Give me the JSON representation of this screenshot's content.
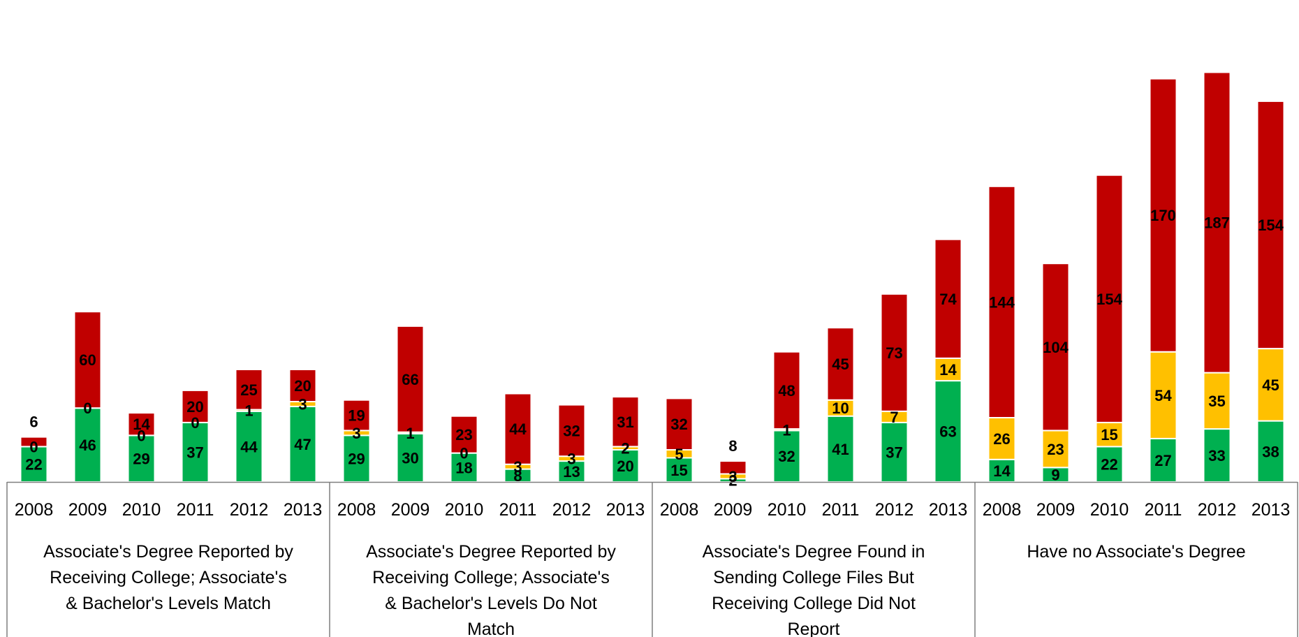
{
  "chart_data": {
    "type": "bar",
    "stacked": true,
    "colors": [
      "#00b050",
      "#ffc000",
      "#c00000"
    ],
    "x_ticks": [
      "2008",
      "2009",
      "2010",
      "2011",
      "2012",
      "2013"
    ],
    "groups": [
      {
        "label_lines": [
          "Associate's Degree Reported by",
          "Receiving College; Associate's",
          "& Bachelor's Levels Match"
        ],
        "bars": [
          [
            22,
            0,
            6
          ],
          [
            46,
            0,
            60
          ],
          [
            29,
            0,
            14
          ],
          [
            37,
            0,
            20
          ],
          [
            44,
            1,
            25
          ],
          [
            47,
            3,
            20
          ]
        ]
      },
      {
        "label_lines": [
          "Associate's Degree Reported by",
          "Receiving College; Associate's",
          "& Bachelor's Levels Do Not",
          "Match"
        ],
        "bars": [
          [
            29,
            3,
            19
          ],
          [
            30,
            1,
            66
          ],
          [
            18,
            0,
            23
          ],
          [
            8,
            3,
            44
          ],
          [
            13,
            3,
            32
          ],
          [
            20,
            2,
            31
          ]
        ]
      },
      {
        "label_lines": [
          "Associate's Degree Found in",
          "Sending College Files But",
          "Receiving College Did Not",
          "Report"
        ],
        "bars": [
          [
            15,
            5,
            32
          ],
          [
            2,
            3,
            8
          ],
          [
            32,
            1,
            48
          ],
          [
            41,
            10,
            45
          ],
          [
            37,
            7,
            73
          ],
          [
            63,
            14,
            74
          ]
        ]
      },
      {
        "label_lines": [
          "Have no Associate's Degree"
        ],
        "bars": [
          [
            14,
            26,
            144
          ],
          [
            9,
            23,
            104
          ],
          [
            22,
            15,
            154
          ],
          [
            27,
            54,
            170
          ],
          [
            33,
            35,
            187
          ],
          [
            38,
            45,
            154
          ]
        ]
      }
    ]
  }
}
